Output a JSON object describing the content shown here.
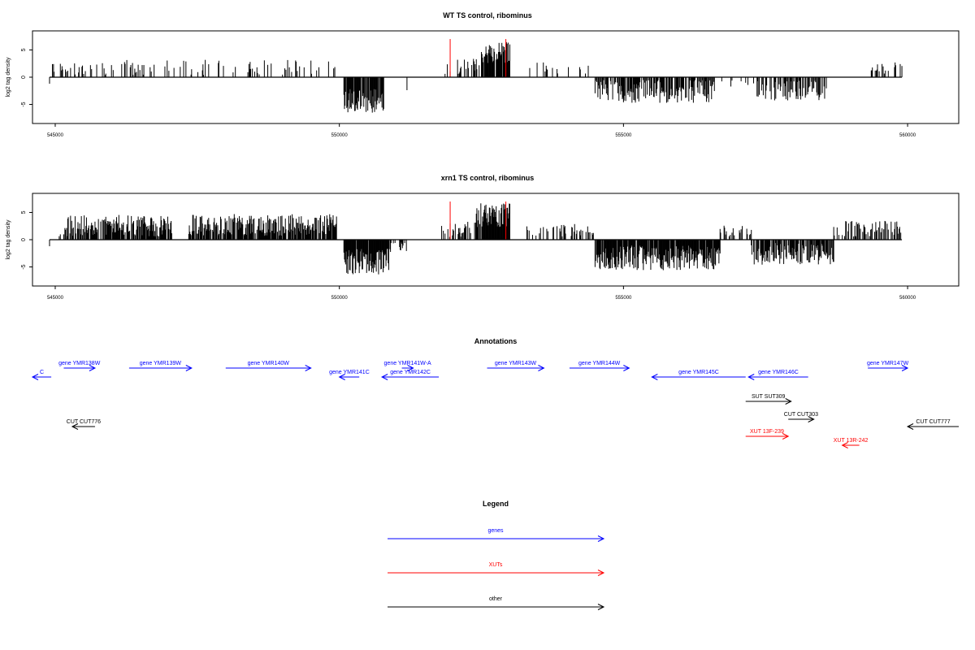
{
  "chart_data": [
    {
      "type": "bar",
      "title": "WT TS control, ribominus",
      "ylabel": "log2 tag density",
      "xlim": [
        544600,
        560900
      ],
      "ylim": [
        -8.5,
        8.5
      ],
      "x_ticks": [
        545000,
        550000,
        555000,
        560000
      ],
      "x_tick_labels": [
        "545000",
        "550000",
        "555000",
        "560000"
      ],
      "y_ticks": [
        -5,
        0,
        5
      ],
      "y_tick_labels": [
        "-5",
        "0",
        "5"
      ],
      "baseline": 0,
      "baseline_range": [
        544900,
        559900
      ],
      "segments": [
        {
          "from": 544920,
          "to": 549950,
          "sign": 1,
          "density": 0.22,
          "mean": 1.8,
          "spread": 1.4
        },
        {
          "from": 550080,
          "to": 550780,
          "sign": -1,
          "density": 0.85,
          "mean": 4.3,
          "spread": 2.2
        },
        {
          "from": 550900,
          "to": 551200,
          "sign": -1,
          "density": 0.1,
          "mean": 1.6,
          "spread": 1.0
        },
        {
          "from": 551800,
          "to": 552000,
          "sign": 1,
          "density": 0.3,
          "mean": 1.5,
          "spread": 1.2
        },
        {
          "from": 552000,
          "to": 552500,
          "sign": 1,
          "density": 0.35,
          "mean": 2.0,
          "spread": 1.4
        },
        {
          "from": 552500,
          "to": 553000,
          "sign": 1,
          "density": 0.95,
          "mean": 4.6,
          "spread": 2.0
        },
        {
          "from": 553300,
          "to": 554400,
          "sign": 1,
          "density": 0.12,
          "mean": 1.5,
          "spread": 1.2
        },
        {
          "from": 554500,
          "to": 556600,
          "sign": -1,
          "density": 0.65,
          "mean": 2.6,
          "spread": 2.1
        },
        {
          "from": 556700,
          "to": 557300,
          "sign": -1,
          "density": 0.08,
          "mean": 1.2,
          "spread": 0.8
        },
        {
          "from": 557350,
          "to": 558600,
          "sign": -1,
          "density": 0.6,
          "mean": 2.5,
          "spread": 1.9
        },
        {
          "from": 558700,
          "to": 559100,
          "sign": 1,
          "density": 0.05,
          "mean": 1.0,
          "spread": 0.6
        },
        {
          "from": 559350,
          "to": 559900,
          "sign": 1,
          "density": 0.22,
          "mean": 1.8,
          "spread": 1.3
        }
      ],
      "highlights": [
        {
          "x": 551950,
          "value": 7.0,
          "color": "#ff0000"
        },
        {
          "x": 552930,
          "value": 7.0,
          "color": "#ff0000"
        }
      ]
    },
    {
      "type": "bar",
      "title": "xrn1 TS control, ribominus",
      "ylabel": "log2 tag density",
      "xlim": [
        544600,
        560900
      ],
      "ylim": [
        -8.5,
        8.5
      ],
      "x_ticks": [
        545000,
        550000,
        555000,
        560000
      ],
      "x_tick_labels": [
        "545000",
        "550000",
        "555000",
        "560000"
      ],
      "y_ticks": [
        -5,
        0,
        5
      ],
      "y_tick_labels": [
        "-5",
        "0",
        "5"
      ],
      "baseline": 0,
      "baseline_range": [
        544900,
        559900
      ],
      "segments": [
        {
          "from": 544920,
          "to": 545150,
          "sign": 1,
          "density": 0.2,
          "mean": 1.2,
          "spread": 0.8
        },
        {
          "from": 545150,
          "to": 547050,
          "sign": 1,
          "density": 0.8,
          "mean": 2.6,
          "spread": 2.0
        },
        {
          "from": 547350,
          "to": 549950,
          "sign": 1,
          "density": 0.8,
          "mean": 2.7,
          "spread": 2.0
        },
        {
          "from": 550080,
          "to": 550900,
          "sign": -1,
          "density": 0.9,
          "mean": 4.0,
          "spread": 2.4
        },
        {
          "from": 550900,
          "to": 551200,
          "sign": -1,
          "density": 0.3,
          "mean": 1.5,
          "spread": 1.0
        },
        {
          "from": 551800,
          "to": 552400,
          "sign": 1,
          "density": 0.4,
          "mean": 2.0,
          "spread": 1.5
        },
        {
          "from": 552400,
          "to": 553000,
          "sign": 1,
          "density": 0.95,
          "mean": 4.5,
          "spread": 2.2
        },
        {
          "from": 553300,
          "to": 554500,
          "sign": 1,
          "density": 0.3,
          "mean": 1.7,
          "spread": 1.2
        },
        {
          "from": 554500,
          "to": 556700,
          "sign": -1,
          "density": 0.9,
          "mean": 3.3,
          "spread": 2.3
        },
        {
          "from": 556700,
          "to": 557250,
          "sign": 1,
          "density": 0.35,
          "mean": 1.7,
          "spread": 1.1
        },
        {
          "from": 557250,
          "to": 558700,
          "sign": -1,
          "density": 0.75,
          "mean": 2.6,
          "spread": 2.0
        },
        {
          "from": 558700,
          "to": 559900,
          "sign": 1,
          "density": 0.45,
          "mean": 2.0,
          "spread": 1.5
        }
      ],
      "highlights": [
        {
          "x": 551950,
          "value": 7.0,
          "color": "#ff0000"
        },
        {
          "x": 552930,
          "value": 7.0,
          "color": "#ff0000"
        }
      ]
    }
  ],
  "annotations": {
    "title": "Annotations",
    "xlim": [
      544600,
      560900
    ],
    "features": [
      {
        "label": "C",
        "from": 544600,
        "to": 544930,
        "dir": "left",
        "row": 1,
        "color": "#0000ff"
      },
      {
        "label": "gene YMR138W",
        "from": 545150,
        "to": 545700,
        "dir": "right",
        "row": 0,
        "color": "#0000ff"
      },
      {
        "label": "gene YMR139W",
        "from": 546300,
        "to": 547400,
        "dir": "right",
        "row": 0,
        "color": "#0000ff"
      },
      {
        "label": "gene YMR140W",
        "from": 548000,
        "to": 549500,
        "dir": "right",
        "row": 0,
        "color": "#0000ff"
      },
      {
        "label": "gene YMR141C",
        "from": 550000,
        "to": 550350,
        "dir": "left",
        "row": 1,
        "color": "#0000ff"
      },
      {
        "label": "gene YMR142C",
        "from": 550750,
        "to": 551750,
        "dir": "left",
        "row": 1,
        "color": "#0000ff"
      },
      {
        "label": "gene YMR141W-A",
        "from": 551100,
        "to": 551300,
        "dir": "right",
        "row": 0,
        "color": "#0000ff"
      },
      {
        "label": "gene YMR143W",
        "from": 552600,
        "to": 553600,
        "dir": "right",
        "row": 0,
        "color": "#0000ff"
      },
      {
        "label": "gene YMR144W",
        "from": 554050,
        "to": 555100,
        "dir": "right",
        "row": 0,
        "color": "#0000ff"
      },
      {
        "label": "gene YMR145C",
        "from": 555500,
        "to": 557150,
        "dir": "left",
        "row": 1,
        "color": "#0000ff"
      },
      {
        "label": "gene YMR146C",
        "from": 557200,
        "to": 558250,
        "dir": "left",
        "row": 1,
        "color": "#0000ff"
      },
      {
        "label": "gene YMR147W",
        "from": 559300,
        "to": 560000,
        "dir": "right",
        "row": 0,
        "color": "#0000ff"
      },
      {
        "label": "SUT SUT309",
        "from": 557150,
        "to": 557950,
        "dir": "right",
        "row": 3,
        "color": "#000000"
      },
      {
        "label": "CUT CUT303",
        "from": 557900,
        "to": 558350,
        "dir": "right",
        "row": 4,
        "color": "#000000"
      },
      {
        "label": "CUT CUT776",
        "from": 545300,
        "to": 545700,
        "dir": "left",
        "row": 5,
        "color": "#000000"
      },
      {
        "label": "CUT CUT777",
        "from": 560000,
        "to": 560900,
        "dir": "left",
        "row": 5,
        "color": "#000000"
      },
      {
        "label": "XUT 13F-239",
        "from": 557150,
        "to": 557900,
        "dir": "right",
        "row": 6,
        "color": "#ff0000"
      },
      {
        "label": "XUT 13R-242",
        "from": 558850,
        "to": 559150,
        "dir": "left",
        "row": 7,
        "color": "#ff0000"
      }
    ]
  },
  "legend": {
    "title": "Legend",
    "items": [
      {
        "label": "genes",
        "color": "#0000ff"
      },
      {
        "label": "XUTs",
        "color": "#ff0000"
      },
      {
        "label": "other",
        "color": "#000000"
      }
    ]
  }
}
